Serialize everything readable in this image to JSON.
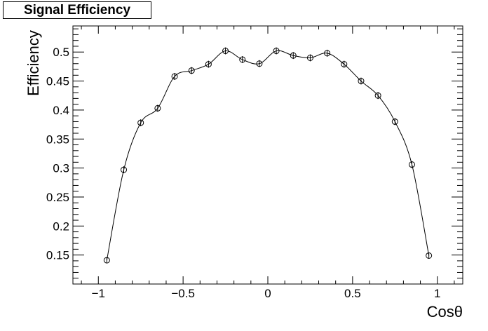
{
  "chart_data": {
    "type": "scatter",
    "title": "Signal Efficiency",
    "xlabel": "Cosθ",
    "ylabel": "Efficiency",
    "xlim": [
      -1.15,
      1.15
    ],
    "ylim": [
      0.1,
      0.545
    ],
    "x_ticks": [
      -1,
      -0.5,
      0,
      0.5,
      1
    ],
    "x_tick_labels": [
      "−1",
      "−0.5",
      "0",
      "0.5",
      "1"
    ],
    "y_ticks": [
      0.15,
      0.2,
      0.25,
      0.3,
      0.35,
      0.4,
      0.45,
      0.5
    ],
    "y_tick_labels": [
      "0.15",
      "0.2",
      "0.25",
      "0.3",
      "0.35",
      "0.4",
      "0.45",
      "0.5"
    ],
    "grid": false,
    "marker": "open-circle",
    "smooth_curve": true,
    "series": [
      {
        "x": [
          -0.95,
          -0.85,
          -0.75,
          -0.65,
          -0.55,
          -0.45,
          -0.35,
          -0.25,
          -0.15,
          -0.05,
          0.05,
          0.15,
          0.25,
          0.35,
          0.45,
          0.55,
          0.65,
          0.75,
          0.85,
          0.95
        ],
        "y": [
          0.141,
          0.297,
          0.378,
          0.403,
          0.458,
          0.468,
          0.479,
          0.502,
          0.487,
          0.48,
          0.502,
          0.494,
          0.49,
          0.498,
          0.479,
          0.45,
          0.425,
          0.38,
          0.306,
          0.149
        ],
        "err": [
          0.005,
          0.006,
          0.006,
          0.006,
          0.006,
          0.006,
          0.006,
          0.006,
          0.006,
          0.006,
          0.006,
          0.006,
          0.006,
          0.006,
          0.006,
          0.006,
          0.006,
          0.006,
          0.006,
          0.005
        ]
      }
    ]
  }
}
